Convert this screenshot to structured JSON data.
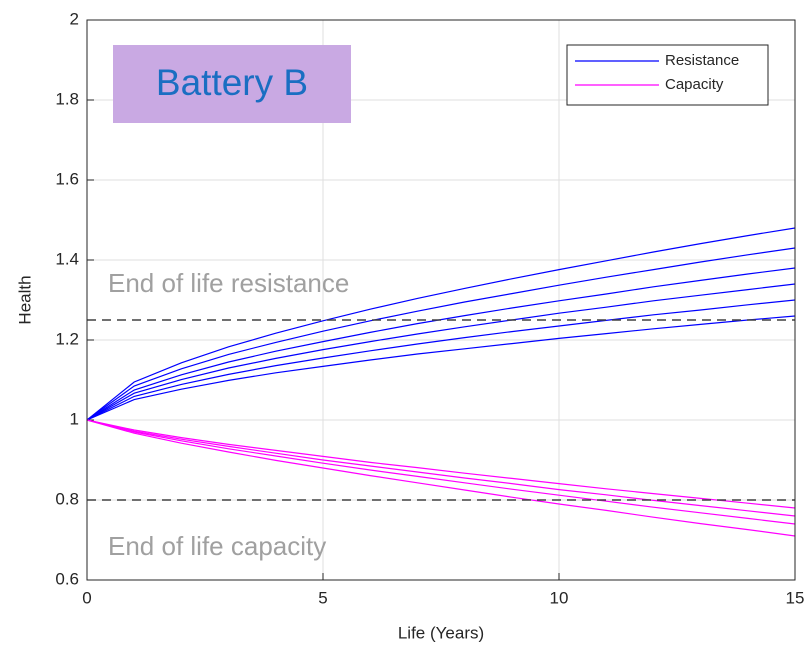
{
  "chart_data": {
    "type": "line",
    "annotation": "Battery B",
    "xlabel": "Life (Years)",
    "ylabel": "Health",
    "x": [
      0,
      1,
      2,
      3,
      4,
      5,
      6,
      7,
      8,
      9,
      10,
      11,
      12,
      13,
      14,
      15
    ],
    "xlim": [
      0,
      15
    ],
    "xticks": [
      0,
      5,
      10,
      15
    ],
    "ylim": [
      0.6,
      2
    ],
    "yticks": [
      0.6,
      0.8,
      1,
      1.2,
      1.4,
      1.6,
      1.8,
      2
    ],
    "grid": true,
    "legend": "upper right",
    "reference_lines": [
      {
        "value": 1.25,
        "label": "End of life resistance"
      },
      {
        "value": 0.8,
        "label": "End of life capacity"
      }
    ],
    "series": [
      {
        "name": "Resistance",
        "color": "#0000ff",
        "values": [
          [
            1,
            1.095,
            1.143,
            1.183,
            1.217,
            1.248,
            1.277,
            1.304,
            1.329,
            1.353,
            1.376,
            1.398,
            1.42,
            1.441,
            1.461,
            1.48
          ],
          [
            1,
            1.085,
            1.128,
            1.164,
            1.194,
            1.222,
            1.248,
            1.272,
            1.295,
            1.316,
            1.337,
            1.357,
            1.376,
            1.395,
            1.413,
            1.43
          ],
          [
            1,
            1.075,
            1.113,
            1.145,
            1.172,
            1.196,
            1.219,
            1.241,
            1.261,
            1.28,
            1.298,
            1.315,
            1.333,
            1.349,
            1.365,
            1.38
          ],
          [
            1,
            1.067,
            1.101,
            1.13,
            1.154,
            1.176,
            1.196,
            1.215,
            1.233,
            1.25,
            1.267,
            1.282,
            1.298,
            1.312,
            1.326,
            1.34
          ],
          [
            1,
            1.059,
            1.089,
            1.114,
            1.136,
            1.155,
            1.173,
            1.19,
            1.206,
            1.221,
            1.235,
            1.249,
            1.263,
            1.275,
            1.288,
            1.3
          ],
          [
            1,
            1.051,
            1.077,
            1.099,
            1.118,
            1.134,
            1.15,
            1.165,
            1.178,
            1.191,
            1.204,
            1.216,
            1.228,
            1.239,
            1.25,
            1.26
          ]
        ]
      },
      {
        "name": "Capacity",
        "color": "#ff00ff",
        "values": [
          [
            1,
            0.967,
            0.942,
            0.92,
            0.899,
            0.88,
            0.861,
            0.843,
            0.825,
            0.807,
            0.79,
            0.774,
            0.757,
            0.741,
            0.726,
            0.71
          ],
          [
            1,
            0.97,
            0.948,
            0.928,
            0.91,
            0.892,
            0.875,
            0.859,
            0.843,
            0.827,
            0.812,
            0.797,
            0.782,
            0.768,
            0.754,
            0.74
          ],
          [
            1,
            0.972,
            0.952,
            0.934,
            0.917,
            0.9,
            0.885,
            0.87,
            0.855,
            0.841,
            0.826,
            0.813,
            0.799,
            0.786,
            0.773,
            0.76
          ],
          [
            1,
            0.975,
            0.956,
            0.939,
            0.924,
            0.909,
            0.894,
            0.881,
            0.867,
            0.854,
            0.841,
            0.828,
            0.816,
            0.804,
            0.792,
            0.78
          ]
        ]
      }
    ]
  }
}
